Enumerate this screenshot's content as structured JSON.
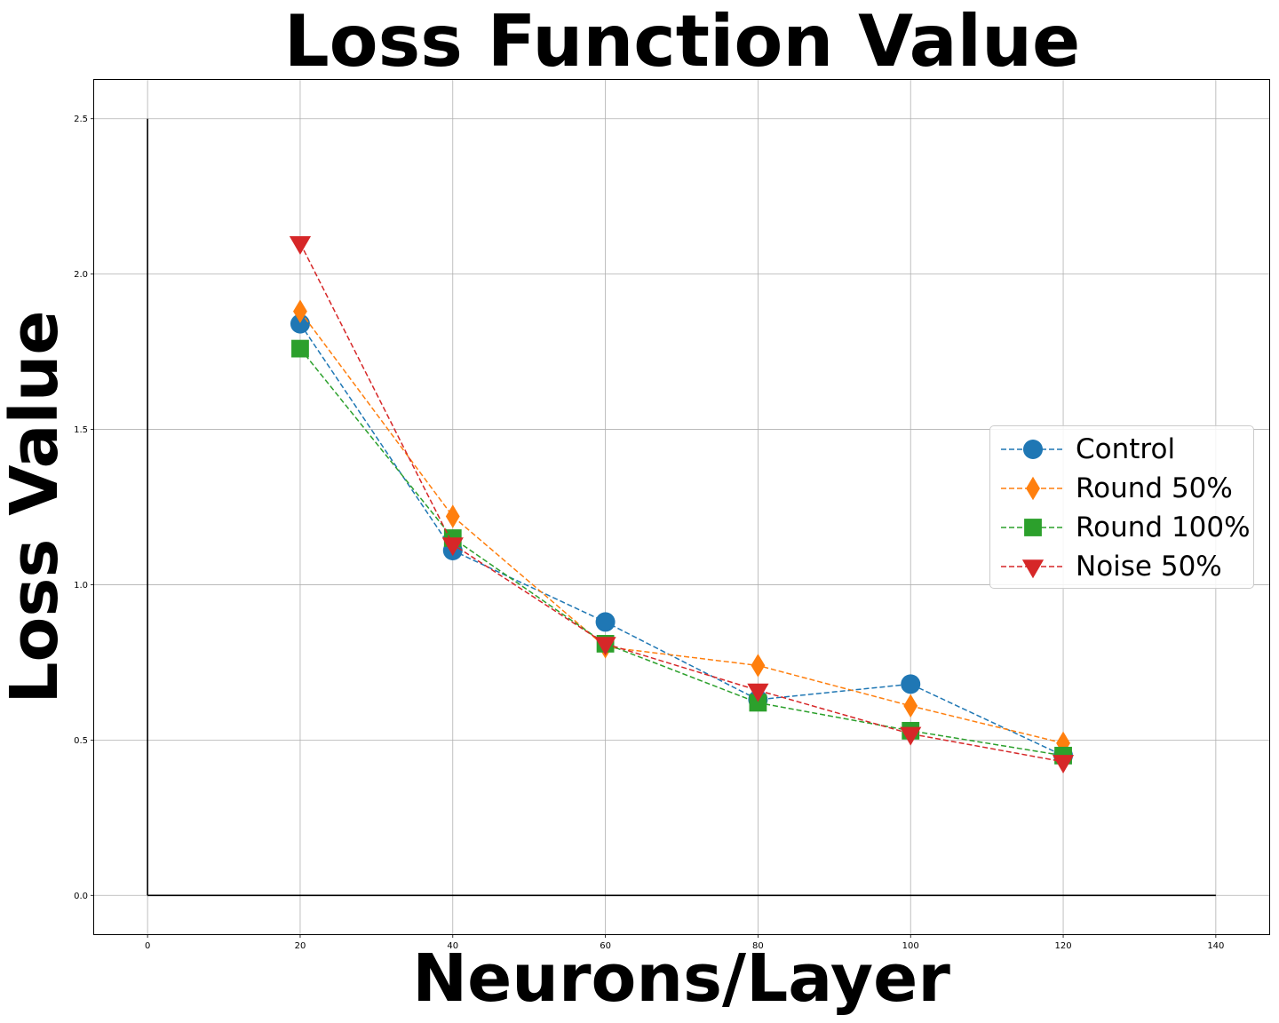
{
  "chart_data": {
    "type": "line",
    "title": "Loss Function Value",
    "xlabel": "Neurons/Layer",
    "ylabel": "Loss Value",
    "xlim": [
      -7,
      147
    ],
    "ylim": [
      -0.125,
      2.625
    ],
    "xticks": [
      "0",
      "20",
      "40",
      "60",
      "80",
      "100",
      "120",
      "140"
    ],
    "yticks": [
      "0.0",
      "0.5",
      "1.0",
      "1.5",
      "2.0",
      "2.5"
    ],
    "grid": true,
    "legend_position": "center-right",
    "x": [
      20,
      40,
      60,
      80,
      100,
      120
    ],
    "series": [
      {
        "name": "Control",
        "color": "#1f77b4",
        "marker": "circle",
        "values": [
          1.84,
          1.11,
          0.88,
          0.63,
          0.68,
          0.45
        ]
      },
      {
        "name": "Round 50%",
        "color": "#ff7f0e",
        "marker": "thin-diamond",
        "values": [
          1.88,
          1.22,
          0.8,
          0.74,
          0.61,
          0.49
        ]
      },
      {
        "name": "Round 100%",
        "color": "#2ca02c",
        "marker": "square",
        "values": [
          1.76,
          1.15,
          0.81,
          0.62,
          0.53,
          0.45
        ]
      },
      {
        "name": "Noise 50%",
        "color": "#d62728",
        "marker": "triangle-down",
        "values": [
          2.1,
          1.13,
          0.81,
          0.66,
          0.52,
          0.43
        ]
      }
    ]
  }
}
